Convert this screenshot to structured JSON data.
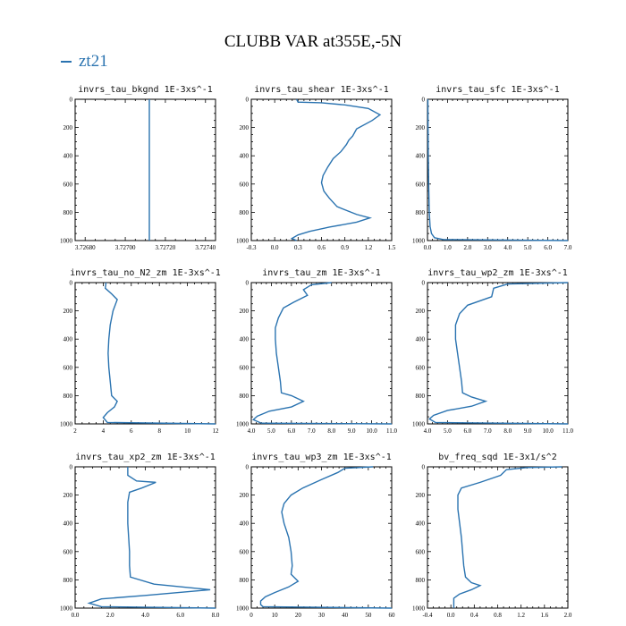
{
  "title": "CLUBB VAR at355E,-5N",
  "legend": [
    {
      "name": "zt21",
      "color": "#2a73b0"
    }
  ],
  "chart_data": [
    {
      "type": "line",
      "title": "invrs_tau_bkgnd   1E-3xs^-1",
      "xlim": [
        3.72675,
        3.72745
      ],
      "ylim": [
        1000,
        0
      ],
      "xticks": [
        3.7268,
        3.727,
        3.7272,
        3.7274
      ],
      "xtick_labels": [
        "3.72680",
        "3.72700",
        "3.72720",
        "3.72740"
      ],
      "yticks": [
        0,
        200,
        400,
        600,
        800,
        1000
      ],
      "ytick_labels": [
        "0",
        "200",
        "400",
        "600",
        "800",
        "1000"
      ],
      "series": [
        {
          "values": [
            [
              3.72712,
              0
            ],
            [
              3.72712,
              1000
            ]
          ]
        }
      ]
    },
    {
      "type": "line",
      "title": "invrs_tau_shear   1E-3xs^-1",
      "xlim": [
        -0.3,
        1.5
      ],
      "ylim": [
        1000,
        0
      ],
      "xticks": [
        -0.3,
        0,
        0.3,
        0.6,
        0.9,
        1.2,
        1.5
      ],
      "xtick_labels": [
        "-0.3",
        "0.0",
        "0.3",
        "0.6",
        "0.9",
        "1.2",
        "1.5"
      ],
      "yticks": [
        0,
        200,
        400,
        600,
        800,
        1000
      ],
      "ytick_labels": [
        "0",
        "200",
        "400",
        "600",
        "800",
        "1000"
      ],
      "series": [
        {
          "values": [
            [
              0.28,
              0
            ],
            [
              0.3,
              20
            ],
            [
              0.6,
              25
            ],
            [
              0.9,
              40
            ],
            [
              1.2,
              65
            ],
            [
              1.35,
              110
            ],
            [
              1.25,
              150
            ],
            [
              1.05,
              210
            ],
            [
              1.0,
              260
            ],
            [
              0.95,
              290
            ],
            [
              0.92,
              320
            ],
            [
              0.85,
              370
            ],
            [
              0.75,
              420
            ],
            [
              0.68,
              480
            ],
            [
              0.62,
              540
            ],
            [
              0.6,
              590
            ],
            [
              0.63,
              650
            ],
            [
              0.7,
              700
            ],
            [
              0.8,
              760
            ],
            [
              1.05,
              815
            ],
            [
              1.22,
              840
            ],
            [
              1.05,
              870
            ],
            [
              0.7,
              905
            ],
            [
              0.45,
              935
            ],
            [
              0.3,
              960
            ],
            [
              0.22,
              985
            ],
            [
              0.28,
              1000
            ]
          ]
        }
      ]
    },
    {
      "type": "line",
      "title": "invrs_tau_sfc   1E-3xs^-1",
      "xlim": [
        0,
        7
      ],
      "ylim": [
        1000,
        0
      ],
      "xticks": [
        0,
        1,
        2,
        3,
        4,
        5,
        6,
        7
      ],
      "xtick_labels": [
        "0.0",
        "1.0",
        "2.0",
        "3.0",
        "4.0",
        "5.0",
        "6.0",
        "7.0"
      ],
      "yticks": [
        0,
        200,
        400,
        600,
        800,
        1000
      ],
      "ytick_labels": [
        "0",
        "200",
        "400",
        "600",
        "800",
        "1000"
      ],
      "series": [
        {
          "values": [
            [
              0.02,
              0
            ],
            [
              0.03,
              200
            ],
            [
              0.04,
              400
            ],
            [
              0.06,
              600
            ],
            [
              0.09,
              800
            ],
            [
              0.13,
              900
            ],
            [
              0.2,
              950
            ],
            [
              0.35,
              980
            ],
            [
              0.8,
              993
            ],
            [
              7,
              1000
            ]
          ]
        }
      ]
    },
    {
      "type": "line",
      "title": "invrs_tau_no_N2_zm   1E-3xs^-1",
      "xlim": [
        2,
        12
      ],
      "ylim": [
        1000,
        0
      ],
      "xticks": [
        2,
        4,
        6,
        8,
        10,
        12
      ],
      "xtick_labels": [
        "2",
        "4",
        "6",
        "8",
        "10",
        "12"
      ],
      "yticks": [
        0,
        200,
        400,
        600,
        800,
        1000
      ],
      "ytick_labels": [
        "0",
        "200",
        "400",
        "600",
        "800",
        "1000"
      ],
      "series": [
        {
          "values": [
            [
              4.2,
              0
            ],
            [
              4.15,
              40
            ],
            [
              4.6,
              80
            ],
            [
              5.0,
              120
            ],
            [
              4.7,
              200
            ],
            [
              4.5,
              300
            ],
            [
              4.4,
              400
            ],
            [
              4.35,
              500
            ],
            [
              4.4,
              600
            ],
            [
              4.5,
              700
            ],
            [
              4.6,
              800
            ],
            [
              5.0,
              840
            ],
            [
              4.8,
              880
            ],
            [
              4.3,
              920
            ],
            [
              4.0,
              955
            ],
            [
              4.3,
              990
            ],
            [
              12,
              1000
            ]
          ]
        }
      ]
    },
    {
      "type": "line",
      "title": "invrs_tau_zm   1E-3xs^-1",
      "xlim": [
        4,
        11
      ],
      "ylim": [
        1000,
        0
      ],
      "xticks": [
        4,
        5,
        6,
        7,
        8,
        9,
        10,
        11
      ],
      "xtick_labels": [
        "4.0",
        "5.0",
        "6.0",
        "7.0",
        "8.0",
        "9.0",
        "10.0",
        "11.0"
      ],
      "yticks": [
        0,
        200,
        400,
        600,
        800,
        1000
      ],
      "ytick_labels": [
        "0",
        "200",
        "400",
        "600",
        "800",
        "1000"
      ],
      "series": [
        {
          "values": [
            [
              8.0,
              0
            ],
            [
              7.0,
              15
            ],
            [
              6.6,
              50
            ],
            [
              6.8,
              90
            ],
            [
              6.1,
              140
            ],
            [
              5.6,
              180
            ],
            [
              5.35,
              250
            ],
            [
              5.2,
              320
            ],
            [
              5.2,
              400
            ],
            [
              5.25,
              500
            ],
            [
              5.35,
              600
            ],
            [
              5.45,
              700
            ],
            [
              5.5,
              780
            ],
            [
              6.0,
              800
            ],
            [
              6.6,
              840
            ],
            [
              6.0,
              880
            ],
            [
              4.9,
              910
            ],
            [
              4.3,
              945
            ],
            [
              4.1,
              970
            ],
            [
              4.5,
              995
            ],
            [
              11,
              1000
            ]
          ]
        }
      ]
    },
    {
      "type": "line",
      "title": "invrs_tau_wp2_zm   1E-3xs^-1",
      "xlim": [
        4,
        11
      ],
      "ylim": [
        1000,
        0
      ],
      "xticks": [
        4,
        5,
        6,
        7,
        8,
        9,
        10,
        11
      ],
      "xtick_labels": [
        "4.0",
        "5.0",
        "6.0",
        "7.0",
        "8.0",
        "9.0",
        "10.0",
        "11.0"
      ],
      "yticks": [
        0,
        200,
        400,
        600,
        800,
        1000
      ],
      "ytick_labels": [
        "0",
        "200",
        "400",
        "600",
        "800",
        "1000"
      ],
      "series": [
        {
          "values": [
            [
              11,
              0
            ],
            [
              8.0,
              10
            ],
            [
              7.3,
              40
            ],
            [
              7.2,
              100
            ],
            [
              6.0,
              160
            ],
            [
              5.6,
              220
            ],
            [
              5.4,
              300
            ],
            [
              5.4,
              400
            ],
            [
              5.5,
              500
            ],
            [
              5.6,
              600
            ],
            [
              5.7,
              700
            ],
            [
              5.75,
              780
            ],
            [
              6.2,
              810
            ],
            [
              6.9,
              840
            ],
            [
              6.2,
              875
            ],
            [
              5.0,
              905
            ],
            [
              4.3,
              940
            ],
            [
              4.1,
              965
            ],
            [
              4.4,
              990
            ],
            [
              11,
              1000
            ]
          ]
        }
      ]
    },
    {
      "type": "line",
      "title": "invrs_tau_xp2_zm   1E-3xs^-1",
      "xlim": [
        0,
        8
      ],
      "ylim": [
        1000,
        0
      ],
      "xticks": [
        0,
        2,
        4,
        6,
        8
      ],
      "xtick_labels": [
        "0.0",
        "2.0",
        "4.0",
        "6.0",
        "8.0"
      ],
      "yticks": [
        0,
        200,
        400,
        600,
        800,
        1000
      ],
      "ytick_labels": [
        "0",
        "200",
        "400",
        "600",
        "800",
        "1000"
      ],
      "series": [
        {
          "values": [
            [
              3.0,
              0
            ],
            [
              3.0,
              60
            ],
            [
              3.5,
              100
            ],
            [
              4.6,
              110
            ],
            [
              3.8,
              150
            ],
            [
              3.1,
              180
            ],
            [
              3.0,
              250
            ],
            [
              3.0,
              400
            ],
            [
              3.05,
              500
            ],
            [
              3.1,
              600
            ],
            [
              3.1,
              700
            ],
            [
              3.15,
              780
            ],
            [
              4.5,
              830
            ],
            [
              7.7,
              870
            ],
            [
              4.0,
              910
            ],
            [
              1.5,
              935
            ],
            [
              0.8,
              965
            ],
            [
              1.5,
              990
            ],
            [
              8,
              1000
            ]
          ]
        }
      ]
    },
    {
      "type": "line",
      "title": "invrs_tau_wp3_zm   1E-3xs^-1",
      "xlim": [
        0,
        60
      ],
      "ylim": [
        1000,
        0
      ],
      "xticks": [
        0,
        10,
        20,
        30,
        40,
        50,
        60
      ],
      "xtick_labels": [
        "0",
        "10",
        "20",
        "30",
        "40",
        "50",
        "60"
      ],
      "yticks": [
        0,
        200,
        400,
        600,
        800,
        1000
      ],
      "ytick_labels": [
        "0",
        "200",
        "400",
        "600",
        "800",
        "1000"
      ],
      "series": [
        {
          "values": [
            [
              52,
              0
            ],
            [
              40,
              10
            ],
            [
              37,
              40
            ],
            [
              30,
              90
            ],
            [
              22,
              150
            ],
            [
              17,
              200
            ],
            [
              14,
              260
            ],
            [
              13,
              320
            ],
            [
              14,
              400
            ],
            [
              16,
              500
            ],
            [
              17,
              600
            ],
            [
              17.5,
              700
            ],
            [
              17,
              760
            ],
            [
              20,
              810
            ],
            [
              16,
              850
            ],
            [
              10,
              890
            ],
            [
              6,
              920
            ],
            [
              4,
              950
            ],
            [
              4,
              975
            ],
            [
              5,
              990
            ],
            [
              60,
              1000
            ]
          ]
        }
      ]
    },
    {
      "type": "line",
      "title": "bv_freq_sqd   1E-3x1/s^2",
      "xlim": [
        -0.4,
        2.0
      ],
      "ylim": [
        1000,
        0
      ],
      "xticks": [
        -0.4,
        0,
        0.4,
        0.8,
        1.2,
        1.6,
        2.0
      ],
      "xtick_labels": [
        "-0.4",
        "0.0",
        "0.4",
        "0.8",
        "1.2",
        "1.6",
        "2.0"
      ],
      "yticks": [
        0,
        200,
        400,
        600,
        800,
        1000
      ],
      "ytick_labels": [
        "0",
        "200",
        "400",
        "600",
        "800",
        "1000"
      ],
      "series": [
        {
          "values": [
            [
              1.9,
              0
            ],
            [
              1.3,
              5
            ],
            [
              0.95,
              20
            ],
            [
              0.85,
              60
            ],
            [
              0.5,
              110
            ],
            [
              0.18,
              150
            ],
            [
              0.12,
              200
            ],
            [
              0.12,
              300
            ],
            [
              0.15,
              400
            ],
            [
              0.18,
              500
            ],
            [
              0.2,
              600
            ],
            [
              0.22,
              700
            ],
            [
              0.25,
              780
            ],
            [
              0.35,
              820
            ],
            [
              0.5,
              840
            ],
            [
              0.35,
              870
            ],
            [
              0.15,
              900
            ],
            [
              0.05,
              930
            ],
            [
              0.05,
              965
            ],
            [
              0.05,
              1000
            ]
          ]
        }
      ]
    }
  ]
}
